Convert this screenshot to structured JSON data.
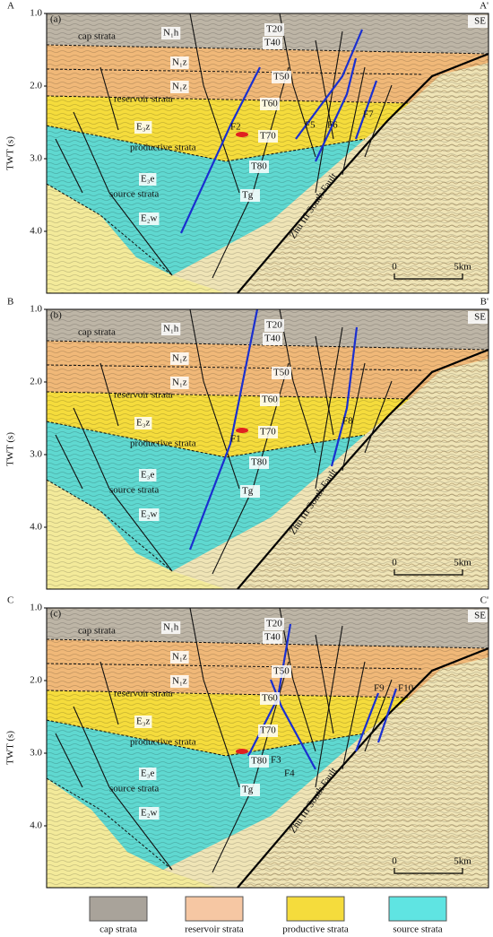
{
  "panels": [
    {
      "label": "(a)",
      "left_end": "A",
      "right_end": "A'",
      "direction": "SE",
      "y_axis_title": "TWT (s)",
      "y_ticks": [
        "1.0",
        "2.0",
        "3.0",
        "4.0"
      ],
      "strata_labels": [
        "cap strata",
        "N₁h",
        "N₁z",
        "N₁z",
        "reservoir strata",
        "E₃z",
        "productive strata",
        "E₃e",
        "source strata",
        "E₂w"
      ],
      "horizons": [
        "T20",
        "T40",
        "T50",
        "T60",
        "T70",
        "T80",
        "Tg"
      ],
      "faults": [
        "F2",
        "F5",
        "F6",
        "F7"
      ],
      "main_fault": "Zhu III South Fault",
      "scale": [
        "0",
        "5km"
      ]
    },
    {
      "label": "(b)",
      "left_end": "B",
      "right_end": "B'",
      "direction": "SE",
      "y_axis_title": "TWT (s)",
      "y_ticks": [
        "1.0",
        "2.0",
        "3.0",
        "4.0"
      ],
      "strata_labels": [
        "cap strata",
        "N₁h",
        "N₁z",
        "N₁z",
        "reservoir strata",
        "E₃z",
        "productive strata",
        "E₃e",
        "source strata",
        "E₂w"
      ],
      "horizons": [
        "T20",
        "T40",
        "T50",
        "T60",
        "T70",
        "T80",
        "Tg"
      ],
      "faults": [
        "F1",
        "F8"
      ],
      "main_fault": "Zhu III South Fault",
      "scale": [
        "0",
        "5km"
      ]
    },
    {
      "label": "(c)",
      "left_end": "C",
      "right_end": "C'",
      "direction": "SE",
      "y_axis_title": "TWT (s)",
      "y_ticks": [
        "1.0",
        "2.0",
        "3.0",
        "4.0"
      ],
      "strata_labels": [
        "cap strata",
        "N₁h",
        "N₁z",
        "N₁z",
        "reservoir strata",
        "E₃z",
        "productive strata",
        "E₃e",
        "source strata",
        "E₂w"
      ],
      "horizons": [
        "T20",
        "T40",
        "T50",
        "T60",
        "T70",
        "T80",
        "Tg"
      ],
      "faults": [
        "F3",
        "F4",
        "F9",
        "F10"
      ],
      "main_fault": "Zhu III South Fault",
      "scale": [
        "0",
        "5km"
      ]
    }
  ],
  "legend": [
    "cap strata",
    "reservoir strata",
    "productive strata",
    "source strata"
  ]
}
